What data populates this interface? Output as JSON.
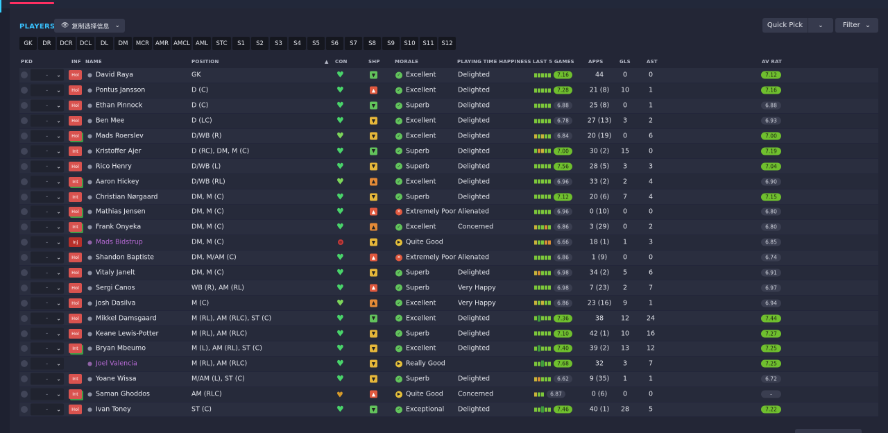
{
  "header": {
    "players_label": "PLAYERS",
    "copy_label": "复制选择信息",
    "quick_pick_label": "Quick Pick",
    "filter_label": "Filter"
  },
  "position_tabs": [
    "GK",
    "DR",
    "DCR",
    "DCL",
    "DL",
    "DM",
    "MCR",
    "AMR",
    "AMCL",
    "AML",
    "STC",
    "S1",
    "S2",
    "S3",
    "S4",
    "S5",
    "S6",
    "S7",
    "S8",
    "S9",
    "S10",
    "S11",
    "S12"
  ],
  "columns": {
    "pkd": "PKD",
    "inf": "INF",
    "name": "NAME",
    "position": "POSITION",
    "con": "CON",
    "shp": "SHP",
    "morale": "MORALE",
    "happiness": "PLAYING TIME HAPPINESS",
    "last5": "LAST 5 GAMES",
    "apps": "APPS",
    "gls": "GLS",
    "ast": "AST",
    "avrat": "AV RAT"
  },
  "selector_dash": "-",
  "players": [
    {
      "name": "David Raya",
      "inf": "Hol",
      "infw": false,
      "position": "GK",
      "con": "heart",
      "shp": "green",
      "morale": "Excellent",
      "mi": "green",
      "happiness": "Delighted",
      "bars": [
        "g",
        "g",
        "g",
        "g",
        "g"
      ],
      "last5": "7.16",
      "last5hi": true,
      "apps": "44",
      "gls": "0",
      "ast": "0",
      "avrat": "7.12",
      "avhi": true
    },
    {
      "name": "Pontus Jansson",
      "inf": "Hol",
      "infw": false,
      "position": "D (C)",
      "con": "heart",
      "shp": "red",
      "morale": "Excellent",
      "mi": "green",
      "happiness": "Delighted",
      "bars": [
        "g",
        "g",
        "g",
        "g",
        "g"
      ],
      "last5": "7.28",
      "last5hi": true,
      "apps": "21 (8)",
      "gls": "10",
      "ast": "1",
      "avrat": "7.16",
      "avhi": true
    },
    {
      "name": "Ethan Pinnock",
      "inf": "Hol",
      "infw": false,
      "position": "D (C)",
      "con": "heart",
      "shp": "green",
      "morale": "Superb",
      "mi": "green",
      "happiness": "Delighted",
      "bars": [
        "g",
        "g",
        "g",
        "g",
        "g"
      ],
      "last5": "6.88",
      "last5hi": false,
      "apps": "25 (8)",
      "gls": "0",
      "ast": "1",
      "avrat": "6.88",
      "avhi": false
    },
    {
      "name": "Ben Mee",
      "inf": "Hol",
      "infw": false,
      "position": "D (LC)",
      "con": "heart",
      "shp": "yellow",
      "morale": "Excellent",
      "mi": "green",
      "happiness": "Delighted",
      "bars": [
        "g",
        "g",
        "g",
        "g",
        "g"
      ],
      "last5": "6.78",
      "last5hi": false,
      "apps": "27 (13)",
      "gls": "3",
      "ast": "2",
      "avrat": "6.93",
      "avhi": false
    },
    {
      "name": "Mads Roerslev",
      "inf": "Hol",
      "infw": true,
      "position": "D/WB (R)",
      "con": "heart",
      "shp": "yellow",
      "morale": "Excellent",
      "mi": "green",
      "happiness": "Delighted",
      "bars": [
        "y",
        "g",
        "y",
        "g",
        "g"
      ],
      "last5": "6.84",
      "last5hi": false,
      "apps": "20 (19)",
      "gls": "0",
      "ast": "6",
      "avrat": "7.00",
      "avhi": true
    },
    {
      "name": "Kristoffer Ajer",
      "inf": "Int",
      "infw": false,
      "position": "D (RC), DM, M (C)",
      "con": "heart",
      "shp": "green",
      "morale": "Superb",
      "mi": "green",
      "happiness": "Delighted",
      "bars": [
        "g",
        "o",
        "y",
        "g",
        "g"
      ],
      "last5": "7.00",
      "last5hi": true,
      "apps": "30 (2)",
      "gls": "15",
      "ast": "0",
      "avrat": "7.19",
      "avhi": true
    },
    {
      "name": "Rico Henry",
      "inf": "Hol",
      "infw": false,
      "position": "D/WB (L)",
      "con": "heart",
      "shp": "yellow",
      "morale": "Superb",
      "mi": "green",
      "happiness": "Delighted",
      "bars": [
        "g",
        "g",
        "g",
        "g",
        "g"
      ],
      "last5": "7.56",
      "last5hi": true,
      "apps": "28 (5)",
      "gls": "3",
      "ast": "3",
      "avrat": "7.04",
      "avhi": true
    },
    {
      "name": "Aaron Hickey",
      "inf": "Int",
      "infw": true,
      "position": "D/WB (RL)",
      "con": "heart",
      "shp": "orange",
      "morale": "Excellent",
      "mi": "green",
      "happiness": "Delighted",
      "bars": [
        "g",
        "g",
        "g",
        "g",
        "g"
      ],
      "last5": "6.96",
      "last5hi": false,
      "apps": "33 (2)",
      "gls": "2",
      "ast": "4",
      "avrat": "6.90",
      "avhi": false
    },
    {
      "name": "Christian Nørgaard",
      "inf": "Int",
      "infw": false,
      "position": "DM, M (C)",
      "con": "heart",
      "shp": "yellow",
      "morale": "Superb",
      "mi": "green",
      "happiness": "Delighted",
      "bars": [
        "g",
        "g",
        "g",
        "g",
        "g"
      ],
      "last5": "7.12",
      "last5hi": true,
      "apps": "20 (6)",
      "gls": "7",
      "ast": "4",
      "avrat": "7.15",
      "avhi": true
    },
    {
      "name": "Mathias Jensen",
      "inf": "Hol",
      "infw": true,
      "position": "DM, M (C)",
      "con": "heart",
      "shp": "red",
      "morale": "Extremely Poor",
      "mi": "red",
      "happiness": "Alienated",
      "bars": [
        "g",
        "g",
        "g",
        "g",
        "g"
      ],
      "last5": "6.96",
      "last5hi": false,
      "apps": "0 (10)",
      "gls": "0",
      "ast": "0",
      "avrat": "6.80",
      "avhi": false
    },
    {
      "name": "Frank Onyeka",
      "inf": "Int",
      "infw": true,
      "position": "DM, M (C)",
      "con": "heart",
      "shp": "orange",
      "morale": "Excellent",
      "mi": "green",
      "happiness": "Concerned",
      "bars": [
        "y",
        "g",
        "g",
        "o",
        "g"
      ],
      "last5": "6.86",
      "last5hi": false,
      "apps": "3 (29)",
      "gls": "0",
      "ast": "2",
      "avrat": "6.80",
      "avhi": false
    },
    {
      "name": "Mads Bidstrup",
      "inf": "Inj",
      "infw": false,
      "purple": true,
      "position": "DM, M (C)",
      "con": "dot",
      "shp": "yellow",
      "morale": "Quite Good",
      "mi": "yellow",
      "happiness": "",
      "bars": [
        "y",
        "g",
        "g",
        "o",
        "o"
      ],
      "last5": "6.66",
      "last5hi": false,
      "apps": "18 (1)",
      "gls": "1",
      "ast": "3",
      "avrat": "6.85",
      "avhi": false
    },
    {
      "name": "Shandon Baptiste",
      "inf": "Hol",
      "infw": false,
      "position": "DM, M/AM (C)",
      "con": "heart",
      "shp": "red",
      "morale": "Extremely Poor",
      "mi": "red",
      "happiness": "Alienated",
      "bars": [
        "g",
        "g",
        "g",
        "g",
        "g"
      ],
      "last5": "6.86",
      "last5hi": false,
      "apps": "1 (9)",
      "gls": "0",
      "ast": "0",
      "avrat": "6.74",
      "avhi": false
    },
    {
      "name": "Vitaly Janelt",
      "inf": "Hol",
      "infw": false,
      "position": "DM, M (C)",
      "con": "heart",
      "shp": "yellow",
      "morale": "Superb",
      "mi": "green",
      "happiness": "Delighted",
      "bars": [
        "y",
        "o",
        "g",
        "g",
        "g"
      ],
      "last5": "6.98",
      "last5hi": false,
      "apps": "34 (2)",
      "gls": "5",
      "ast": "6",
      "avrat": "6.91",
      "avhi": false
    },
    {
      "name": "Sergi Canos",
      "inf": "Hol",
      "infw": false,
      "position": "WB (R), AM (RL)",
      "con": "heart",
      "shp": "red",
      "morale": "Superb",
      "mi": "green",
      "happiness": "Very Happy",
      "bars": [
        "g",
        "g",
        "g",
        "g",
        "g"
      ],
      "last5": "6.98",
      "last5hi": false,
      "apps": "7 (23)",
      "gls": "2",
      "ast": "7",
      "avrat": "6.97",
      "avhi": false
    },
    {
      "name": "Josh Dasilva",
      "inf": "Hol",
      "infw": false,
      "position": "M (C)",
      "con": "heart",
      "shp": "orange",
      "morale": "Excellent",
      "mi": "green",
      "happiness": "Very Happy",
      "bars": [
        "y",
        "g",
        "y",
        "g",
        "g"
      ],
      "last5": "6.86",
      "last5hi": false,
      "apps": "23 (16)",
      "gls": "9",
      "ast": "1",
      "avrat": "6.94",
      "avhi": false
    },
    {
      "name": "Mikkel Damsgaard",
      "inf": "Hol",
      "infw": false,
      "position": "M (RL), AM (RLC), ST (C)",
      "con": "heart",
      "shp": "green",
      "morale": "Excellent",
      "mi": "green",
      "happiness": "Delighted",
      "bars": [
        "g",
        "gr",
        "g",
        "g",
        "g"
      ],
      "last5": "7.36",
      "last5hi": true,
      "apps": "38",
      "gls": "12",
      "ast": "24",
      "avrat": "7.44",
      "avhi": true
    },
    {
      "name": "Keane Lewis-Potter",
      "inf": "Hol",
      "infw": false,
      "position": "M (RL), AM (RLC)",
      "con": "heart",
      "shp": "yellow",
      "morale": "Superb",
      "mi": "green",
      "happiness": "Delighted",
      "bars": [
        "g",
        "g",
        "g",
        "g",
        "g"
      ],
      "last5": "7.10",
      "last5hi": true,
      "apps": "42 (1)",
      "gls": "10",
      "ast": "16",
      "avrat": "7.27",
      "avhi": true
    },
    {
      "name": "Bryan Mbeumo",
      "inf": "Int",
      "infw": true,
      "position": "M (L), AM (RL), ST (C)",
      "con": "heart",
      "shp": "yellow",
      "morale": "Excellent",
      "mi": "green",
      "happiness": "Delighted",
      "bars": [
        "g",
        "gr",
        "g",
        "g",
        "g"
      ],
      "last5": "7.40",
      "last5hi": true,
      "apps": "39 (2)",
      "gls": "13",
      "ast": "12",
      "avrat": "7.25",
      "avhi": true
    },
    {
      "name": "Joel Valencia",
      "inf": "",
      "infw": false,
      "purple": true,
      "position": "M (RL), AM (RLC)",
      "con": "heart",
      "shp": "yellow",
      "morale": "Really Good",
      "mi": "yellow",
      "happiness": "",
      "bars": [
        "g",
        "g",
        "gr",
        "g",
        "g"
      ],
      "last5": "7.68",
      "last5hi": true,
      "apps": "32",
      "gls": "3",
      "ast": "7",
      "avrat": "7.25",
      "avhi": true
    },
    {
      "name": "Yoane Wissa",
      "inf": "Int",
      "infw": false,
      "position": "M/AM (L), ST (C)",
      "con": "heart",
      "shp": "yellow",
      "morale": "Superb",
      "mi": "green",
      "happiness": "Delighted",
      "bars": [
        "y",
        "o",
        "g",
        "g",
        "g"
      ],
      "last5": "6.62",
      "last5hi": false,
      "apps": "9 (35)",
      "gls": "1",
      "ast": "1",
      "avrat": "6.72",
      "avhi": false
    },
    {
      "name": "Saman Ghoddos",
      "inf": "Int",
      "infw": true,
      "position": "AM (RLC)",
      "con": "amber",
      "shp": "red",
      "morale": "Quite Good",
      "mi": "yellow",
      "happiness": "Concerned",
      "bars": [
        "y",
        "g",
        "g"
      ],
      "last5": "6.87",
      "last5hi": false,
      "apps": "0 (6)",
      "gls": "0",
      "ast": "0",
      "avrat": "-",
      "avhi": false
    },
    {
      "name": "Ivan Toney",
      "inf": "Hol",
      "infw": false,
      "position": "ST (C)",
      "con": "heart",
      "shp": "green",
      "morale": "Exceptional",
      "mi": "green",
      "happiness": "Delighted",
      "bars": [
        "g",
        "g",
        "gr",
        "g",
        "g"
      ],
      "last5": "7.46",
      "last5hi": true,
      "apps": "40 (1)",
      "gls": "28",
      "ast": "5",
      "avrat": "7.22",
      "avhi": true
    }
  ]
}
